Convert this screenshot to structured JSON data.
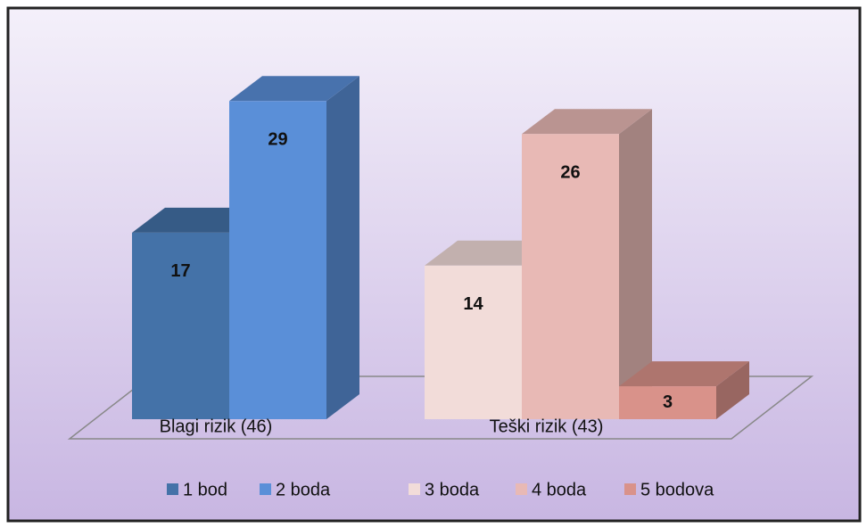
{
  "chart_data": {
    "type": "bar3d",
    "categories": [
      "Blagi rizik (46)",
      "Teški rizik (43)"
    ],
    "series": [
      {
        "name": "1 bod",
        "color": "#4472a8",
        "values": [
          17,
          null
        ]
      },
      {
        "name": "2 boda",
        "color": "#5a8fd8",
        "values": [
          29,
          null
        ]
      },
      {
        "name": "3 boda",
        "color": "#f2dcd9",
        "values": [
          null,
          14
        ]
      },
      {
        "name": "4 boda",
        "color": "#e8b9b5",
        "values": [
          null,
          26
        ]
      },
      {
        "name": "5 bodova",
        "color": "#d9928a",
        "values": [
          null,
          3
        ]
      }
    ],
    "ylim": [
      0,
      30
    ],
    "legend": "bottom"
  }
}
